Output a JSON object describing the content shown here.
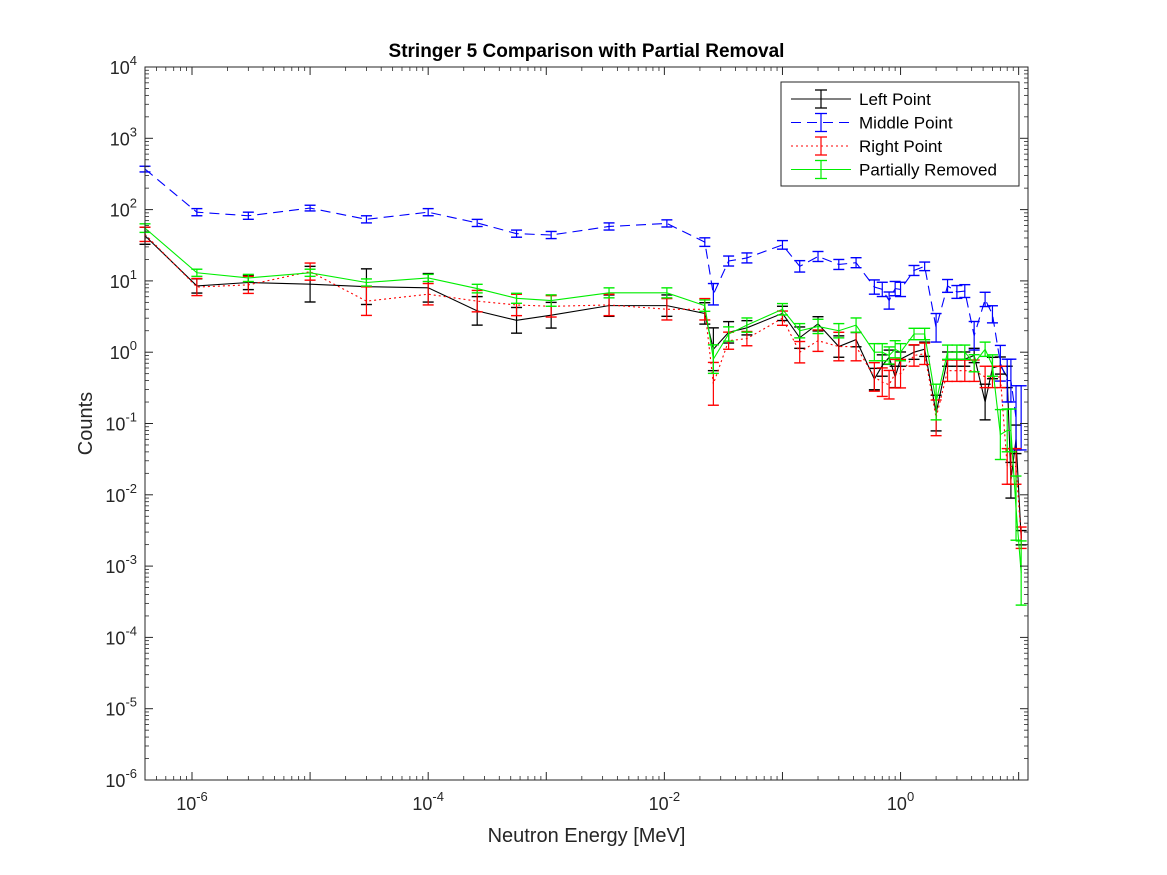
{
  "chart_data": {
    "type": "line",
    "title": "Stringer 5 Comparison with Partial Removal",
    "xlabel": "Neutron Energy [MeV]",
    "ylabel": "Counts",
    "xscale": "log",
    "yscale": "log",
    "xlim": [
      4e-07,
      12
    ],
    "ylim": [
      1e-06,
      10000
    ],
    "x_ticks": [
      {
        "base": "10",
        "exp": "-6",
        "value": 1e-06
      },
      {
        "base": "10",
        "exp": "-4",
        "value": 0.0001
      },
      {
        "base": "10",
        "exp": "-2",
        "value": 0.01
      },
      {
        "base": "10",
        "exp": "0",
        "value": 1
      }
    ],
    "y_ticks": [
      {
        "base": "10",
        "exp": "-6",
        "value": 1e-06
      },
      {
        "base": "10",
        "exp": "-5",
        "value": 1e-05
      },
      {
        "base": "10",
        "exp": "-4",
        "value": 0.0001
      },
      {
        "base": "10",
        "exp": "-3",
        "value": 0.001
      },
      {
        "base": "10",
        "exp": "-2",
        "value": 0.01
      },
      {
        "base": "10",
        "exp": "-1",
        "value": 0.1
      },
      {
        "base": "10",
        "exp": "0",
        "value": 1
      },
      {
        "base": "10",
        "exp": "1",
        "value": 10
      },
      {
        "base": "10",
        "exp": "2",
        "value": 100
      },
      {
        "base": "10",
        "exp": "3",
        "value": 1000
      },
      {
        "base": "10",
        "exp": "4",
        "value": 10000
      }
    ],
    "grid": false,
    "legend_position": "top-right",
    "x": [
      4e-07,
      1.1e-06,
      3e-06,
      1e-05,
      3e-05,
      0.0001,
      0.00026,
      0.00056,
      0.0011,
      0.0034,
      0.0105,
      0.022,
      0.026,
      0.035,
      0.05,
      0.1,
      0.14,
      0.2,
      0.3,
      0.42,
      0.6,
      0.7,
      0.8,
      0.9,
      1.0,
      1.3,
      1.6,
      2.0,
      2.5,
      3.0,
      3.5,
      4.2,
      5.2,
      6.0,
      7.0,
      8.0,
      8.6,
      9.5,
      10.5
    ],
    "series": [
      {
        "name": "Left Point",
        "color": "#000000",
        "dash": "solid",
        "values": [
          43,
          8.5,
          9.5,
          9,
          8.3,
          8,
          3.8,
          2.8,
          3.3,
          4.5,
          4.5,
          3.5,
          1.1,
          1.9,
          2.2,
          3.5,
          1.6,
          2.5,
          1.2,
          1.5,
          0.42,
          0.65,
          0.85,
          0.45,
          0.8,
          1.0,
          1.1,
          0.14,
          0.8,
          0.8,
          0.8,
          0.9,
          0.2,
          0.6,
          0.65,
          0.45,
          0.016,
          0.06,
          0.0025
        ],
        "errors": [
          0.12,
          0.1,
          0.1,
          0.25,
          0.25,
          0.2,
          0.2,
          0.18,
          0.18,
          0.15,
          0.15,
          0.15,
          0.3,
          0.15,
          0.1,
          0.1,
          0.15,
          0.1,
          0.15,
          0.1,
          0.15,
          0.15,
          0.1,
          0.15,
          0.1,
          0.1,
          0.1,
          0.25,
          0.1,
          0.1,
          0.1,
          0.1,
          0.25,
          0.15,
          0.12,
          0.15,
          0.25,
          0.2,
          0.1
        ]
      },
      {
        "name": "Middle Point",
        "color": "#0000ff",
        "dash": "dashed",
        "values": [
          370,
          92,
          82,
          105,
          73,
          92,
          65,
          46,
          44,
          58,
          64,
          35,
          6.5,
          19,
          21,
          32,
          16,
          22,
          17,
          18,
          8.2,
          7.6,
          5.3,
          7.8,
          7.6,
          14,
          16,
          2.2,
          8.5,
          7,
          7.2,
          1.7,
          5.5,
          3.4,
          0.7,
          0.4,
          0.4,
          0.12,
          0.12
        ],
        "errors": [
          0.04,
          0.05,
          0.05,
          0.04,
          0.05,
          0.05,
          0.05,
          0.05,
          0.05,
          0.05,
          0.05,
          0.06,
          0.15,
          0.07,
          0.07,
          0.06,
          0.08,
          0.07,
          0.07,
          0.07,
          0.1,
          0.1,
          0.12,
          0.1,
          0.1,
          0.07,
          0.06,
          0.2,
          0.09,
          0.09,
          0.09,
          0.2,
          0.1,
          0.12,
          0.25,
          0.3,
          0.3,
          0.45,
          0.45
        ]
      },
      {
        "name": "Right Point",
        "color": "#ff0000",
        "dash": "dotted",
        "values": [
          45,
          8.2,
          8.8,
          13.5,
          5.2,
          6.5,
          5.2,
          4.6,
          4.4,
          4.6,
          4.0,
          4.0,
          0.36,
          1.45,
          1.55,
          3.0,
          1.0,
          1.45,
          1.2,
          1.2,
          0.45,
          0.38,
          0.35,
          0.5,
          0.5,
          0.9,
          0.95,
          0.12,
          0.55,
          0.55,
          0.55,
          0.55,
          0.45,
          0.45,
          0.45,
          0.025,
          0.025,
          0.025,
          0.0025
        ],
        "errors": [
          0.1,
          0.12,
          0.12,
          0.12,
          0.2,
          0.15,
          0.15,
          0.15,
          0.15,
          0.15,
          0.15,
          0.15,
          0.3,
          0.12,
          0.1,
          0.1,
          0.15,
          0.15,
          0.2,
          0.2,
          0.2,
          0.2,
          0.2,
          0.2,
          0.2,
          0.15,
          0.15,
          0.25,
          0.15,
          0.15,
          0.15,
          0.15,
          0.15,
          0.15,
          0.15,
          0.25,
          0.25,
          0.25,
          0.15
        ]
      },
      {
        "name": "Partially Removed",
        "color": "#00ee00",
        "dash": "solid",
        "values": [
          55,
          13,
          11,
          13,
          9.5,
          11,
          7.8,
          5.7,
          5.3,
          6.8,
          6.8,
          4.5,
          0.8,
          1.8,
          2.4,
          4.0,
          2.0,
          2.3,
          2.0,
          2.4,
          1.0,
          1.0,
          0.9,
          1.1,
          1.0,
          1.8,
          1.8,
          0.2,
          1.0,
          1.0,
          1.0,
          0.7,
          1.1,
          0.65,
          0.07,
          0.08,
          0.08,
          0.0065,
          0.0008
        ],
        "errors": [
          0.06,
          0.05,
          0.05,
          0.05,
          0.05,
          0.05,
          0.06,
          0.07,
          0.08,
          0.07,
          0.07,
          0.08,
          0.2,
          0.1,
          0.1,
          0.08,
          0.1,
          0.1,
          0.1,
          0.1,
          0.12,
          0.12,
          0.12,
          0.12,
          0.12,
          0.08,
          0.08,
          0.25,
          0.1,
          0.1,
          0.1,
          0.12,
          0.1,
          0.15,
          0.35,
          0.3,
          0.3,
          0.45,
          0.45
        ]
      }
    ]
  }
}
